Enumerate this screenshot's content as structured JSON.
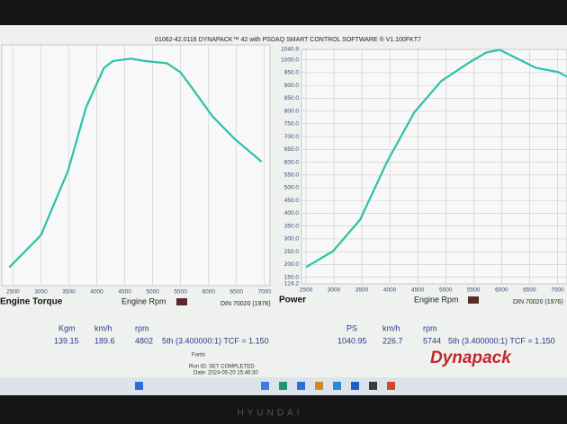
{
  "header": {
    "title": "01062-42.0116 DYNAPACK™ 42 with PSDAQ SMART CONTROL SOFTWARE ® V1.100FKT7"
  },
  "chart_data": [
    {
      "type": "line",
      "title": "Engine Torque",
      "x_label": "Engine Rpm",
      "note": "DIN 70020 (1976)",
      "color": "#2cc0aa",
      "grid": true,
      "x": [
        2435,
        3000,
        3484,
        3806,
        4129,
        4290,
        4613,
        4855,
        5258,
        5500,
        5742,
        6065,
        6468,
        6952
      ],
      "values": [
        48,
        62,
        90,
        117.6,
        135,
        138,
        139,
        138,
        137,
        133,
        125,
        114,
        104,
        94
      ],
      "xlim": [
        2300,
        7100
      ],
      "ylim": [
        40,
        145
      ],
      "xticks": [
        2500,
        3000,
        3500,
        4000,
        4500,
        5000,
        5500,
        6000,
        6500,
        7000
      ]
    },
    {
      "type": "line",
      "title": "Power",
      "x_label": "Engine Rpm",
      "note": "DIN 70020 (1976)",
      "color": "#2cc0aa",
      "grid": true,
      "x": [
        2500,
        2984,
        3468,
        3952,
        4436,
        4919,
        5403,
        5726,
        5968,
        6290,
        6613,
        7016,
        7177
      ],
      "values": [
        189.5,
        252,
        375,
        602,
        794,
        917,
        987,
        1029,
        1039,
        1004,
        969,
        952,
        934
      ],
      "xlim": [
        2420,
        7170
      ],
      "ylim": [
        124.2,
        1040.9
      ],
      "xticks": [
        2500,
        3000,
        3500,
        4000,
        4500,
        5000,
        5500,
        6000,
        6500,
        7000
      ],
      "yticks": [
        124.2,
        {
          "value": 150,
          "label": "150.0"
        },
        {
          "value": 200,
          "label": "200.0"
        },
        {
          "value": 250,
          "label": "250.0"
        },
        {
          "value": 300,
          "label": "300.0"
        },
        {
          "value": 350,
          "label": "350.0"
        },
        {
          "value": 400,
          "label": "400.0"
        },
        {
          "value": 450,
          "label": "450.0"
        },
        {
          "value": 500,
          "label": "500.0"
        },
        {
          "value": 550,
          "label": "550.0"
        },
        {
          "value": 600,
          "label": "600.0"
        },
        {
          "value": 650,
          "label": "650.0"
        },
        {
          "value": 700,
          "label": "700.0"
        },
        {
          "value": 750,
          "label": "750.0"
        },
        {
          "value": 800,
          "label": "800.0"
        },
        {
          "value": 850,
          "label": "850.0"
        },
        {
          "value": 900,
          "label": "900.0"
        },
        {
          "value": 950,
          "label": "950.0"
        },
        {
          "value": 1000,
          "label": "1000.0"
        },
        1040.9
      ]
    }
  ],
  "readouts": [
    {
      "headers": [
        "Kgm",
        "km/h",
        "rpm"
      ],
      "values": [
        139.15,
        189.6,
        4802
      ],
      "gear": "5th (3.400000:1) TCF = 1.150"
    },
    {
      "headers": [
        "PS",
        "km/h",
        "rpm"
      ],
      "values": [
        1040.95,
        226.7,
        5744
      ],
      "gear": "5th (3.400000:1) TCF = 1.150"
    }
  ],
  "footer": {
    "fonts": "Fonts",
    "run_id": "Run ID: SET COMPLETED",
    "date": "Date: 2024-05-20 15:46:30",
    "logo": "Dynapack",
    "bezel": "HYUNDAI"
  }
}
